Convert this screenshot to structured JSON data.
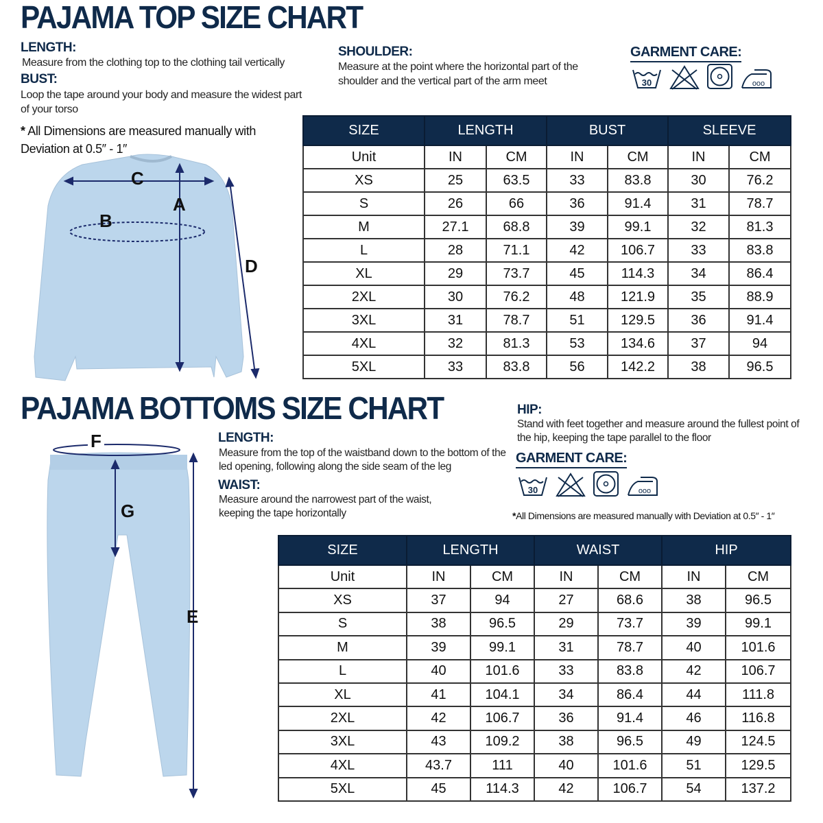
{
  "top": {
    "title": "PAJAMA TOP SIZE CHART",
    "length_h": "LENGTH:",
    "length_p": "Measure from the clothing top to the clothing tail vertically",
    "bust_h": "BUST:",
    "bust_p": "Loop the tape around your body and measure the widest part of your torso",
    "note_star": "*",
    "note": "All Dimensions are measured manually with Deviation at 0.5″ - 1″",
    "shoulder_h": "SHOULDER:",
    "shoulder_p": "Measure at the point where the horizontal part of the shoulder and the vertical part of the arm meet",
    "care_h": "GARMENT CARE:",
    "labels": {
      "a": "A",
      "b": "B",
      "c": "C",
      "d": "D"
    },
    "garment_color": "#bcd6ec",
    "table": {
      "headers": [
        "SIZE",
        "LENGTH",
        "BUST",
        "SLEEVE"
      ],
      "unit_row": [
        "Unit",
        "IN",
        "CM",
        "IN",
        "CM",
        "IN",
        "CM"
      ],
      "rows": [
        [
          "XS",
          "25",
          "63.5",
          "33",
          "83.8",
          "30",
          "76.2"
        ],
        [
          "S",
          "26",
          "66",
          "36",
          "91.4",
          "31",
          "78.7"
        ],
        [
          "M",
          "27.1",
          "68.8",
          "39",
          "99.1",
          "32",
          "81.3"
        ],
        [
          "L",
          "28",
          "71.1",
          "42",
          "106.7",
          "33",
          "83.8"
        ],
        [
          "XL",
          "29",
          "73.7",
          "45",
          "114.3",
          "34",
          "86.4"
        ],
        [
          "2XL",
          "30",
          "76.2",
          "48",
          "121.9",
          "35",
          "88.9"
        ],
        [
          "3XL",
          "31",
          "78.7",
          "51",
          "129.5",
          "36",
          "91.4"
        ],
        [
          "4XL",
          "32",
          "81.3",
          "53",
          "134.6",
          "37",
          "94"
        ],
        [
          "5XL",
          "33",
          "83.8",
          "56",
          "142.2",
          "38",
          "96.5"
        ]
      ]
    }
  },
  "bottom": {
    "title": "PAJAMA BOTTOMS SIZE CHART",
    "length_h": "LENGTH:",
    "length_p": "Measure from the top of the waistband down to the bottom of the led opening, following along the side seam of the leg",
    "waist_h": "WAIST:",
    "waist_p": "Measure around the narrowest part of the waist, keeping the tape horizontally",
    "hip_h": "HIP:",
    "hip_p": "Stand with feet together and measure around the fullest point of the hip, keeping the tape parallel to the floor",
    "care_h": "GARMENT CARE:",
    "note_star": "*",
    "note": "All Dimensions are measured manually with Deviation at 0.5″ - 1″",
    "labels": {
      "e": "E",
      "f": "F",
      "g": "G"
    },
    "table": {
      "headers": [
        "SIZE",
        "LENGTH",
        "WAIST",
        "HIP"
      ],
      "unit_row": [
        "Unit",
        "IN",
        "CM",
        "IN",
        "CM",
        "IN",
        "CM"
      ],
      "rows": [
        [
          "XS",
          "37",
          "94",
          "27",
          "68.6",
          "38",
          "96.5"
        ],
        [
          "S",
          "38",
          "96.5",
          "29",
          "73.7",
          "39",
          "99.1"
        ],
        [
          "M",
          "39",
          "99.1",
          "31",
          "78.7",
          "40",
          "101.6"
        ],
        [
          "L",
          "40",
          "101.6",
          "33",
          "83.8",
          "42",
          "106.7"
        ],
        [
          "XL",
          "41",
          "104.1",
          "34",
          "86.4",
          "44",
          "111.8"
        ],
        [
          "2XL",
          "42",
          "106.7",
          "36",
          "91.4",
          "46",
          "116.8"
        ],
        [
          "3XL",
          "43",
          "109.2",
          "38",
          "96.5",
          "49",
          "124.5"
        ],
        [
          "4XL",
          "43.7",
          "111",
          "40",
          "101.6",
          "51",
          "129.5"
        ],
        [
          "5XL",
          "45",
          "114.3",
          "42",
          "106.7",
          "54",
          "137.2"
        ]
      ]
    }
  },
  "care_icons": {
    "wash_temp": "30",
    "iron_dots": "ooo",
    "icons": [
      "wash-30-icon",
      "do-not-bleach-icon",
      "tumble-dry-icon",
      "iron-icon"
    ]
  },
  "colors": {
    "navy": "#0f2a4a"
  }
}
